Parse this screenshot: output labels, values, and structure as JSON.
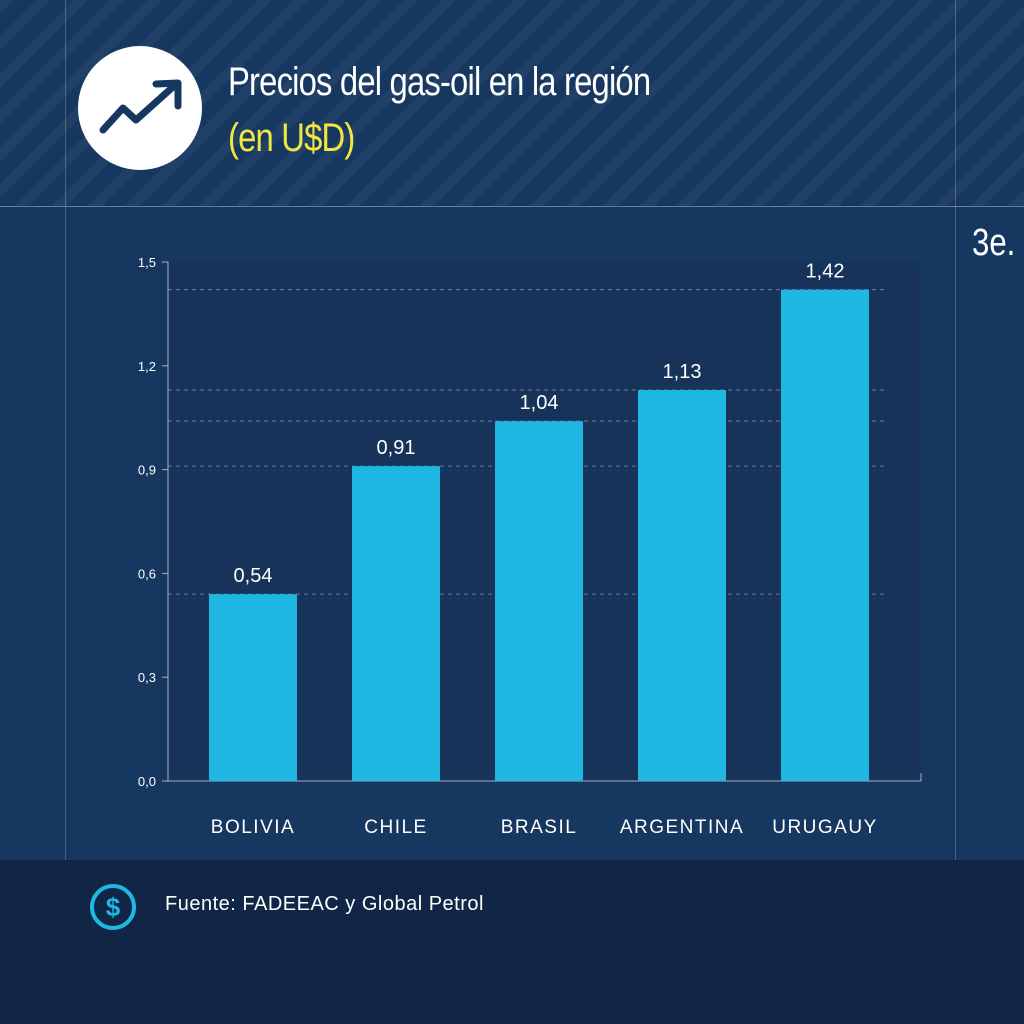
{
  "header": {
    "title": "Precios del gas-oil en la región",
    "subtitle": "(en U$D)",
    "logo_icon": "trending-up-icon",
    "corner_label": "3e."
  },
  "chart_data": {
    "type": "bar",
    "categories": [
      "BOLIVIA",
      "CHILE",
      "BRASIL",
      "ARGENTINA",
      "URUGAUY"
    ],
    "values": [
      0.54,
      0.91,
      1.04,
      1.13,
      1.42
    ],
    "value_labels": [
      "0,54",
      "0,91",
      "1,04",
      "1,13",
      "1,42"
    ],
    "yticks": [
      0.0,
      0.3,
      0.6,
      0.9,
      1.2,
      1.5
    ],
    "ytick_labels": [
      "0,0",
      "0,3",
      "0,6",
      "0,9",
      "1,2",
      "1,5"
    ],
    "ylim": [
      0,
      1.5
    ],
    "grid": "dashed lines at bar values",
    "bar_color": "#1eb8e2",
    "plot_background": "#18335a"
  },
  "footer": {
    "source": "Fuente: FADEEAC y Global Petrol",
    "icon": "dollar-icon",
    "icon_color": "#1eb8e2"
  }
}
